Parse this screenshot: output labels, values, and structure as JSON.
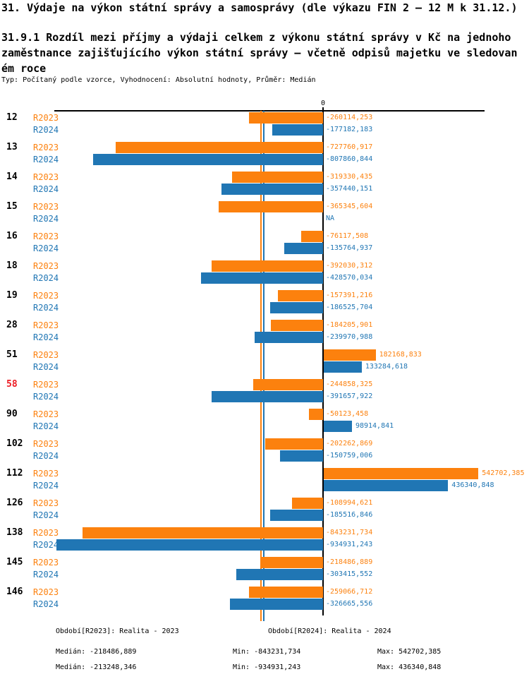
{
  "header": {
    "title": "31. Výdaje na výkon státní správy a samosprávy (dle výkazu FIN 2 – 12 M k 31.12.)",
    "subtitle_lines": [
      "31.9.1 Rozdíl mezi příjmy a výdaji celkem z výkonu státní správy v Kč na jednoho",
      "zaměstnance zajišťujícího výkon státní správy – včetně odpisů majetku ve sledovan",
      "ém roce"
    ],
    "meta": "Typ: Počítaný podle vzorce, Vyhodnocení: Absolutní hodnoty, Průměr: Medián"
  },
  "chart_data": {
    "type": "bar",
    "orientation": "horizontal",
    "title": "31.9.1 Rozdíl mezi příjmy a výdaji celkem z výkonu státní správy v Kč na jednoho zaměstnance zajišťujícího výkon státní správy – včetně odpisů majetku ve sledovaném roce",
    "categories": [
      "12",
      "13",
      "14",
      "15",
      "16",
      "18",
      "19",
      "28",
      "51",
      "58",
      "90",
      "102",
      "112",
      "126",
      "138",
      "145",
      "146"
    ],
    "highlighted_category": "58",
    "na_label": "NA",
    "axis": {
      "zero_label": "0",
      "xlim": [
        -943000,
        567000
      ],
      "grid": false
    },
    "medians": {
      "R2023": -218486.889,
      "R2024": -213248.346
    },
    "series": [
      {
        "name": "R2023",
        "color": "#fc810e",
        "values": [
          -260114.253,
          -727760.917,
          -319330.435,
          -365345.604,
          -76117.508,
          -392030.312,
          -157391.216,
          -184205.901,
          182168.833,
          -244858.325,
          -50123.458,
          -202262.869,
          542702.385,
          -108994.621,
          -843231.734,
          -218486.889,
          -259066.712
        ],
        "labels": [
          "-260114,253",
          "-727760,917",
          "-319330,435",
          "-365345,604",
          "-76117,508",
          "-392030,312",
          "-157391,216",
          "-184205,901",
          "182168,833",
          "-244858,325",
          "-50123,458",
          "-202262,869",
          "542702,385",
          "-108994,621",
          "-843231,734",
          "-218486,889",
          "-259066,712"
        ]
      },
      {
        "name": "R2024",
        "color": "#2076b4",
        "values": [
          -177182.183,
          -807860.844,
          -357440.151,
          null,
          -135764.937,
          -428570.034,
          -186525.704,
          -239970.988,
          133284.618,
          -391657.922,
          98914.841,
          -150759.006,
          436340.848,
          -185516.846,
          -934931.243,
          -303415.552,
          -326665.556
        ],
        "labels": [
          "-177182,183",
          "-807860,844",
          "-357440,151",
          "NA",
          "-135764,937",
          "-428570,034",
          "-186525,704",
          "-239970,988",
          "133284,618",
          "-391657,922",
          "98914,841",
          "-150759,006",
          "436340,848",
          "-185516,846",
          "-934931,243",
          "-303415,552",
          "-326665,556"
        ]
      }
    ]
  },
  "legend": {
    "r2023": "Období[R2023]: Realita - 2023",
    "r2024": "Období[R2024]: Realita - 2024"
  },
  "stats": {
    "r2023": {
      "median": "Medián: -218486,889",
      "min": "Min: -843231,734",
      "max": "Max: 542702,385"
    },
    "r2024": {
      "median": "Medián: -213248,346",
      "min": "Min: -934931,243",
      "max": "Max: 436340,848"
    }
  },
  "colors": {
    "r2023": "#fc810e",
    "r2024": "#2076b4",
    "highlight": "#ed1c24",
    "axis": "#000000"
  }
}
